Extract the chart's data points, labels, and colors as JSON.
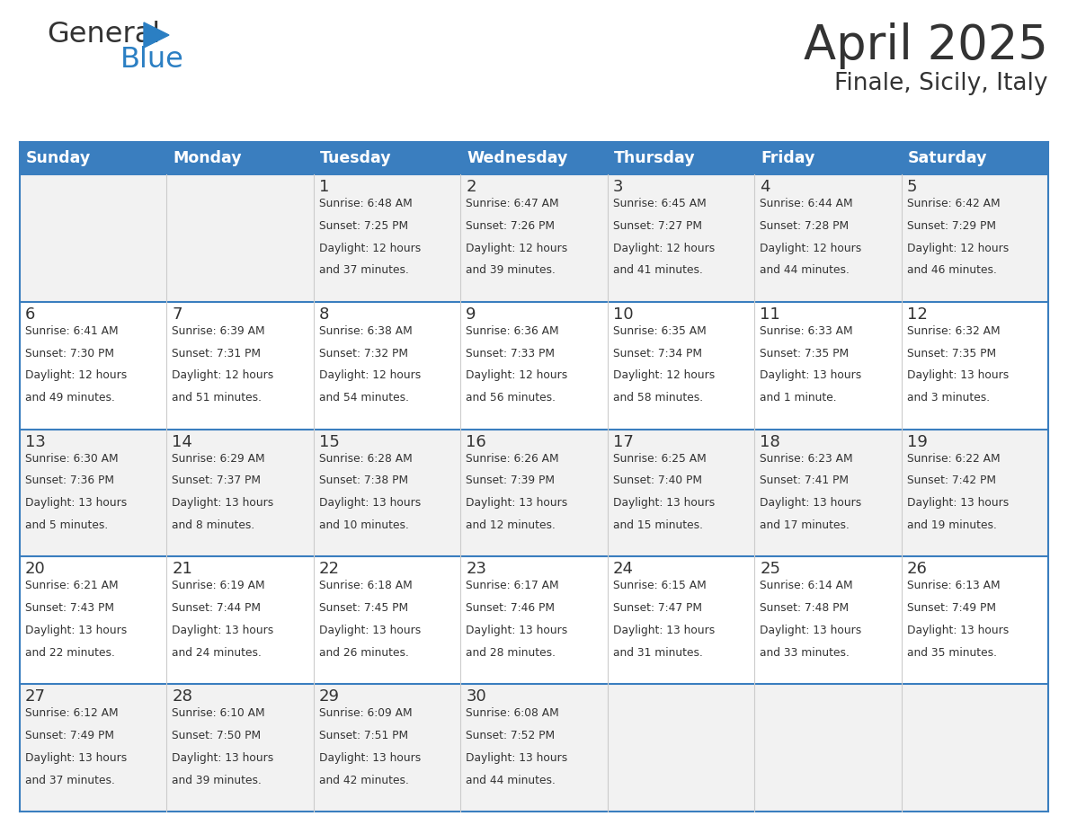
{
  "title": "April 2025",
  "subtitle": "Finale, Sicily, Italy",
  "header_color": "#3a7ebf",
  "header_text_color": "#ffffff",
  "cell_bg_even": "#f2f2f2",
  "cell_bg_odd": "#ffffff",
  "border_color": "#3a7ebf",
  "text_color": "#333333",
  "days_of_week": [
    "Sunday",
    "Monday",
    "Tuesday",
    "Wednesday",
    "Thursday",
    "Friday",
    "Saturday"
  ],
  "weeks": [
    [
      {
        "day": "",
        "info": ""
      },
      {
        "day": "",
        "info": ""
      },
      {
        "day": "1",
        "info": "Sunrise: 6:48 AM\nSunset: 7:25 PM\nDaylight: 12 hours\nand 37 minutes."
      },
      {
        "day": "2",
        "info": "Sunrise: 6:47 AM\nSunset: 7:26 PM\nDaylight: 12 hours\nand 39 minutes."
      },
      {
        "day": "3",
        "info": "Sunrise: 6:45 AM\nSunset: 7:27 PM\nDaylight: 12 hours\nand 41 minutes."
      },
      {
        "day": "4",
        "info": "Sunrise: 6:44 AM\nSunset: 7:28 PM\nDaylight: 12 hours\nand 44 minutes."
      },
      {
        "day": "5",
        "info": "Sunrise: 6:42 AM\nSunset: 7:29 PM\nDaylight: 12 hours\nand 46 minutes."
      }
    ],
    [
      {
        "day": "6",
        "info": "Sunrise: 6:41 AM\nSunset: 7:30 PM\nDaylight: 12 hours\nand 49 minutes."
      },
      {
        "day": "7",
        "info": "Sunrise: 6:39 AM\nSunset: 7:31 PM\nDaylight: 12 hours\nand 51 minutes."
      },
      {
        "day": "8",
        "info": "Sunrise: 6:38 AM\nSunset: 7:32 PM\nDaylight: 12 hours\nand 54 minutes."
      },
      {
        "day": "9",
        "info": "Sunrise: 6:36 AM\nSunset: 7:33 PM\nDaylight: 12 hours\nand 56 minutes."
      },
      {
        "day": "10",
        "info": "Sunrise: 6:35 AM\nSunset: 7:34 PM\nDaylight: 12 hours\nand 58 minutes."
      },
      {
        "day": "11",
        "info": "Sunrise: 6:33 AM\nSunset: 7:35 PM\nDaylight: 13 hours\nand 1 minute."
      },
      {
        "day": "12",
        "info": "Sunrise: 6:32 AM\nSunset: 7:35 PM\nDaylight: 13 hours\nand 3 minutes."
      }
    ],
    [
      {
        "day": "13",
        "info": "Sunrise: 6:30 AM\nSunset: 7:36 PM\nDaylight: 13 hours\nand 5 minutes."
      },
      {
        "day": "14",
        "info": "Sunrise: 6:29 AM\nSunset: 7:37 PM\nDaylight: 13 hours\nand 8 minutes."
      },
      {
        "day": "15",
        "info": "Sunrise: 6:28 AM\nSunset: 7:38 PM\nDaylight: 13 hours\nand 10 minutes."
      },
      {
        "day": "16",
        "info": "Sunrise: 6:26 AM\nSunset: 7:39 PM\nDaylight: 13 hours\nand 12 minutes."
      },
      {
        "day": "17",
        "info": "Sunrise: 6:25 AM\nSunset: 7:40 PM\nDaylight: 13 hours\nand 15 minutes."
      },
      {
        "day": "18",
        "info": "Sunrise: 6:23 AM\nSunset: 7:41 PM\nDaylight: 13 hours\nand 17 minutes."
      },
      {
        "day": "19",
        "info": "Sunrise: 6:22 AM\nSunset: 7:42 PM\nDaylight: 13 hours\nand 19 minutes."
      }
    ],
    [
      {
        "day": "20",
        "info": "Sunrise: 6:21 AM\nSunset: 7:43 PM\nDaylight: 13 hours\nand 22 minutes."
      },
      {
        "day": "21",
        "info": "Sunrise: 6:19 AM\nSunset: 7:44 PM\nDaylight: 13 hours\nand 24 minutes."
      },
      {
        "day": "22",
        "info": "Sunrise: 6:18 AM\nSunset: 7:45 PM\nDaylight: 13 hours\nand 26 minutes."
      },
      {
        "day": "23",
        "info": "Sunrise: 6:17 AM\nSunset: 7:46 PM\nDaylight: 13 hours\nand 28 minutes."
      },
      {
        "day": "24",
        "info": "Sunrise: 6:15 AM\nSunset: 7:47 PM\nDaylight: 13 hours\nand 31 minutes."
      },
      {
        "day": "25",
        "info": "Sunrise: 6:14 AM\nSunset: 7:48 PM\nDaylight: 13 hours\nand 33 minutes."
      },
      {
        "day": "26",
        "info": "Sunrise: 6:13 AM\nSunset: 7:49 PM\nDaylight: 13 hours\nand 35 minutes."
      }
    ],
    [
      {
        "day": "27",
        "info": "Sunrise: 6:12 AM\nSunset: 7:49 PM\nDaylight: 13 hours\nand 37 minutes."
      },
      {
        "day": "28",
        "info": "Sunrise: 6:10 AM\nSunset: 7:50 PM\nDaylight: 13 hours\nand 39 minutes."
      },
      {
        "day": "29",
        "info": "Sunrise: 6:09 AM\nSunset: 7:51 PM\nDaylight: 13 hours\nand 42 minutes."
      },
      {
        "day": "30",
        "info": "Sunrise: 6:08 AM\nSunset: 7:52 PM\nDaylight: 13 hours\nand 44 minutes."
      },
      {
        "day": "",
        "info": ""
      },
      {
        "day": "",
        "info": ""
      },
      {
        "day": "",
        "info": ""
      }
    ]
  ],
  "logo_color_general": "#333333",
  "logo_color_blue": "#2b7fc3",
  "logo_triangle_color": "#2b7fc3",
  "fig_width": 11.88,
  "fig_height": 9.18,
  "dpi": 100
}
